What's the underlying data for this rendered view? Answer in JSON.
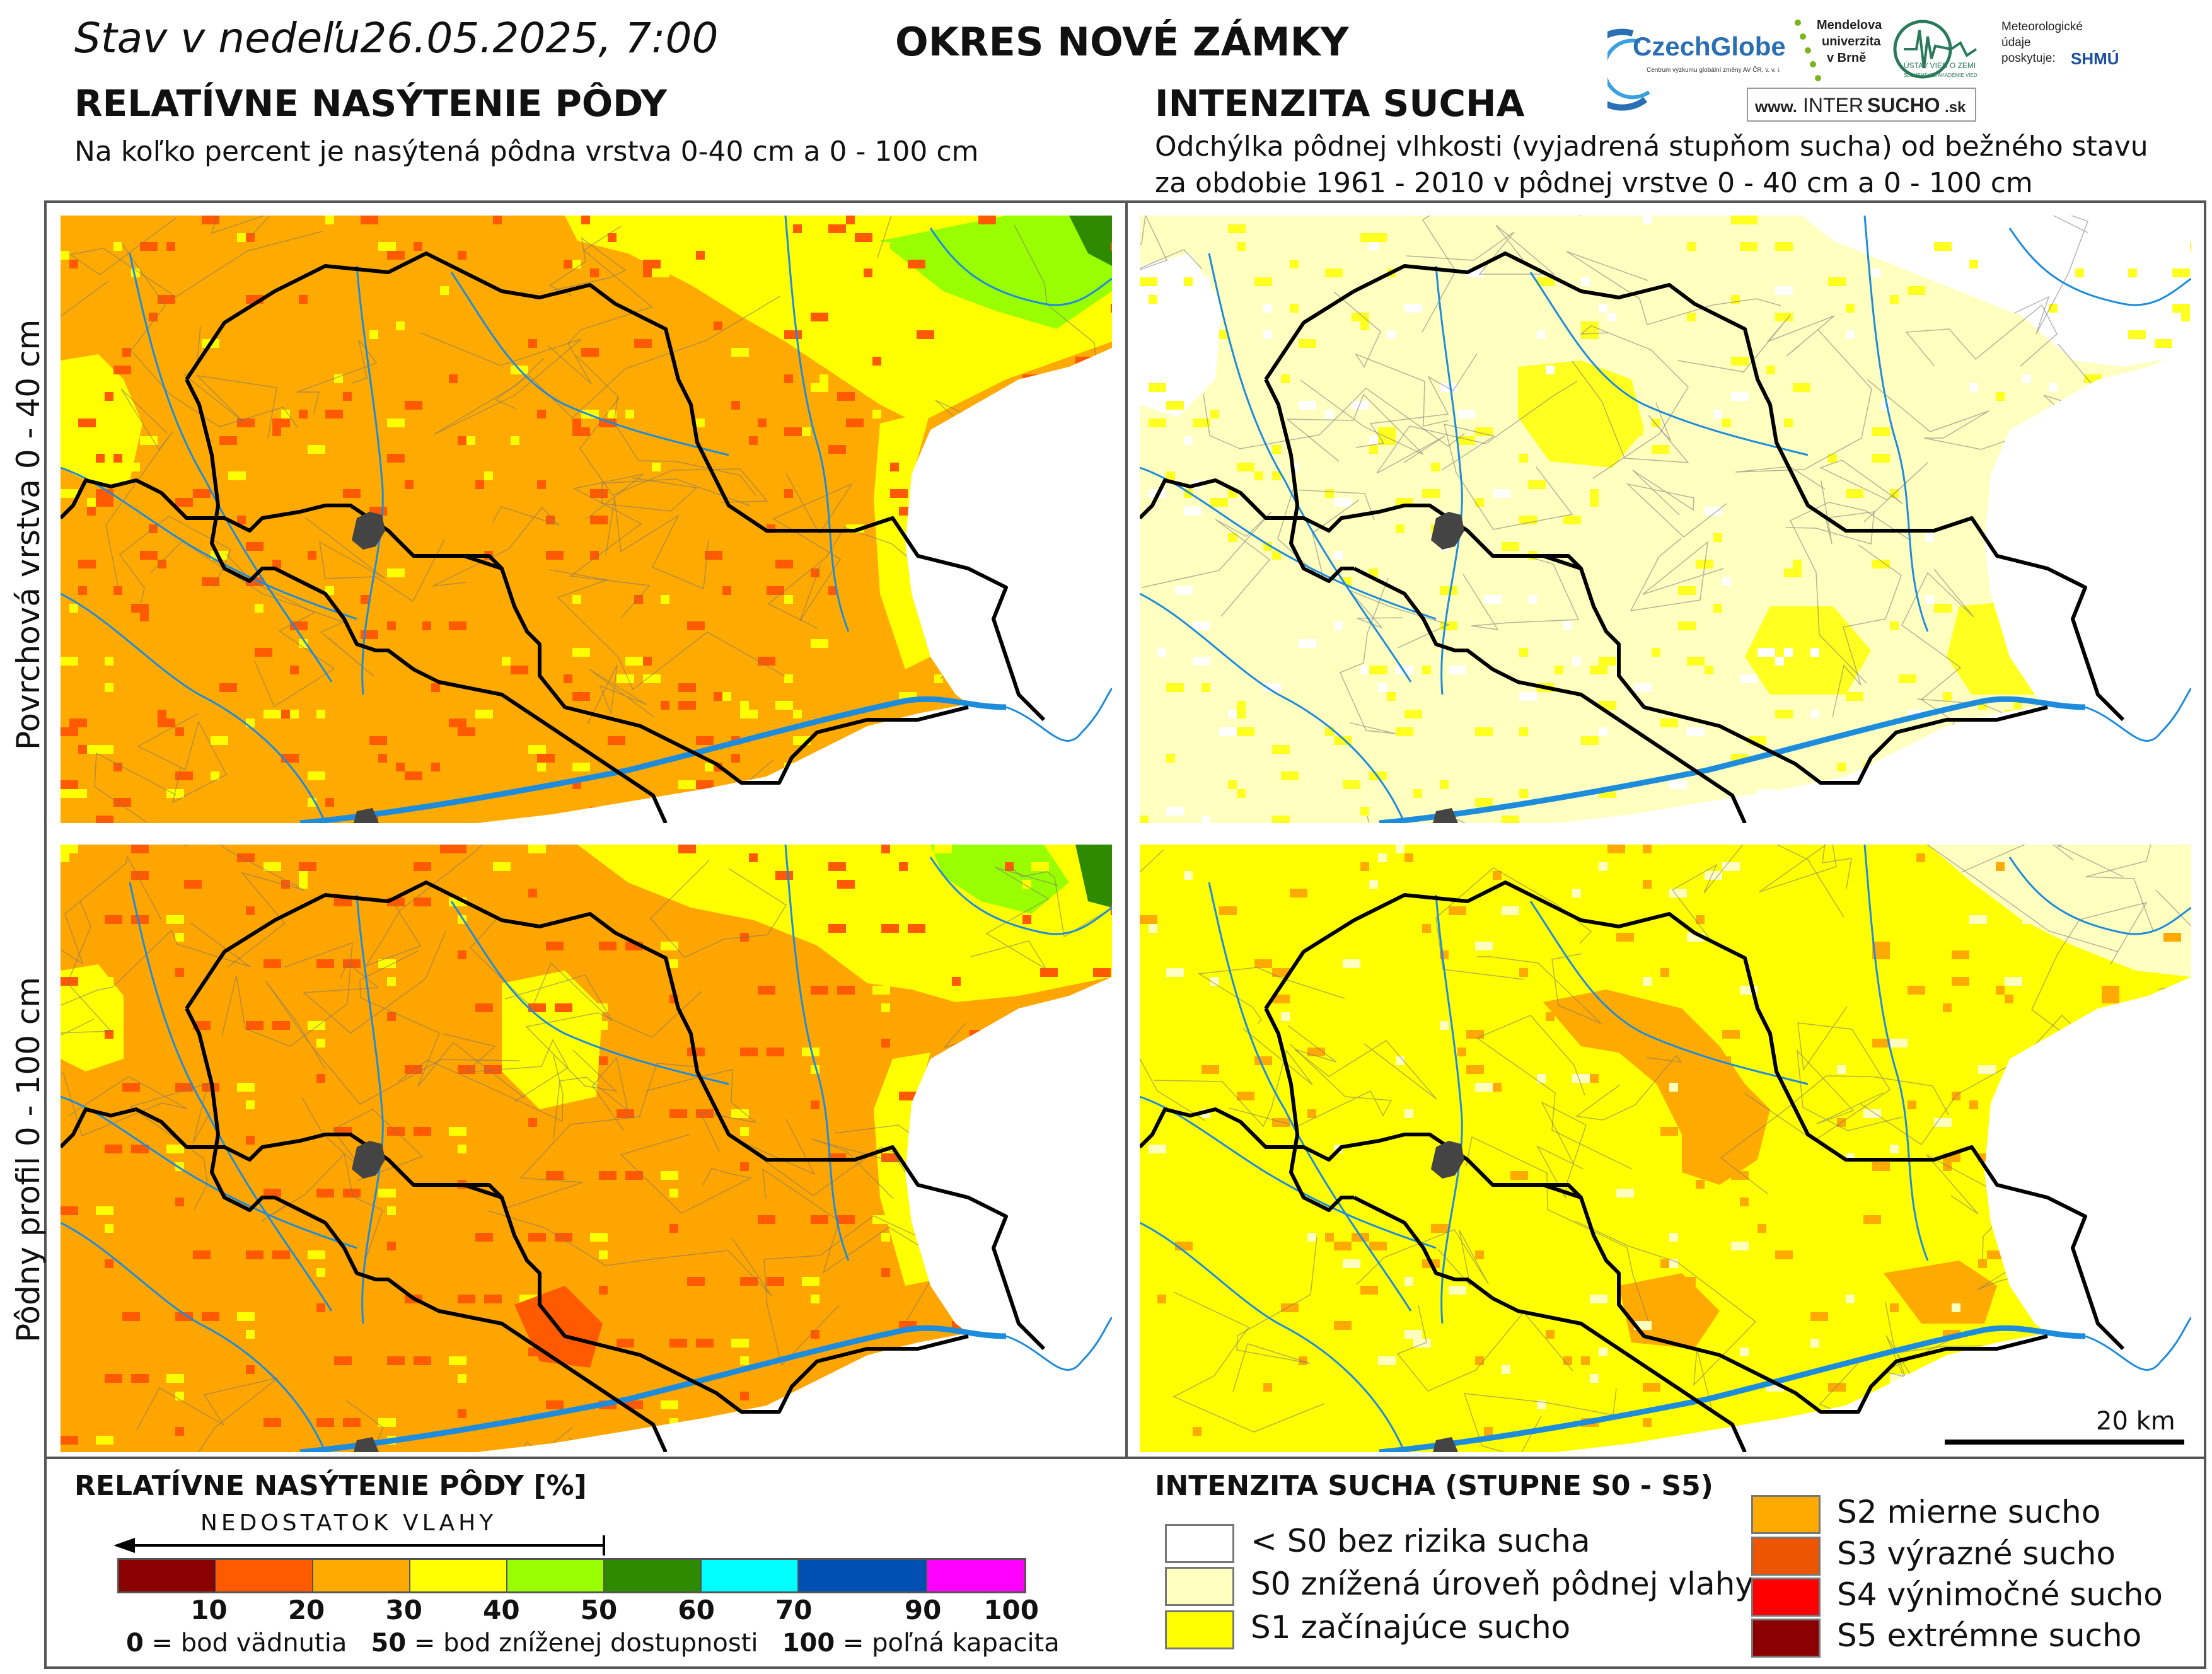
{
  "header": {
    "date_line": "Stav v nedeľu26.05.2025, 7:00",
    "district": "OKRES  NOVÉ ZÁMKY",
    "left_title": "RELATÍVNE NASÝTENIE PÔDY",
    "left_subtitle": "Na koľko percent je nasýtená pôdna vrstva 0-40 cm a 0 - 100 cm",
    "right_title": "INTENZITA SUCHA",
    "right_subtitle_1": "Odchýlka pôdnej vlhkosti (vyjadrená stupňom sucha) od bežného stavu",
    "right_subtitle_2": "za obdobie 1961 - 2010 v pôdnej vrstve 0 - 40 cm a 0 - 100 cm"
  },
  "logos": {
    "czechglobe": "CzechGlobe",
    "czechglobe_sub": "Centrum výzkumu globální změny AV ČR, v. v. i.",
    "mendelu_1": "Mendelova",
    "mendelu_2": "univerzita",
    "mendelu_3": "v Brně",
    "ustav": "ÚSTAV VIED O ZEMI",
    "ustav_sub": "SLOVENSKEJ AKADÉMIE VIED",
    "meteo_1": "Meteorologické",
    "meteo_2": "údaje",
    "meteo_3": "poskytuje:",
    "shmu": "SHMÚ",
    "intersucho_www": "www.",
    "intersucho_a": "INTER",
    "intersucho_b": "SUCHO",
    "intersucho_c": ".sk"
  },
  "row_labels": {
    "top": "Povrchová vrstva 0 - 40 cm",
    "bottom": "Pôdny profil 0 - 100 cm"
  },
  "scale_bar": "20 km",
  "saturation_legend": {
    "title": "RELATÍVNE NASÝTENIE PÔDY [%]",
    "arrow_label": "NEDOSTATOK VLAHY",
    "bins": [
      {
        "upper": "10",
        "color": "#8b0000"
      },
      {
        "upper": "20",
        "color": "#ff5a00"
      },
      {
        "upper": "30",
        "color": "#ffaa00"
      },
      {
        "upper": "40",
        "color": "#ffff00"
      },
      {
        "upper": "50",
        "color": "#99ff00"
      },
      {
        "upper": "60",
        "color": "#2e8b00"
      },
      {
        "upper": "70",
        "color": "#00ffff"
      },
      {
        "upper": "90",
        "color": "#0050b4"
      },
      {
        "upper": "100",
        "color": "#ff00ff"
      }
    ],
    "note_0_num": "0",
    "note_0_text": " = bod vädnutia",
    "note_50_num": "50",
    "note_50_text": " = bod zníženej dostupnosti",
    "note_100_num": "100",
    "note_100_text": " = poľná kapacita"
  },
  "drought_legend": {
    "title": "INTENZITA SUCHA (STUPNE S0 - S5)",
    "classes": [
      {
        "label": "< S0 bez rizika sucha",
        "color": "#ffffff"
      },
      {
        "label": "S0 znížená úroveň pôdnej vlahy",
        "color": "#ffffc0"
      },
      {
        "label": "S1 začínajúce sucho",
        "color": "#ffff00"
      },
      {
        "label": "S2 mierne sucho",
        "color": "#ffaa00"
      },
      {
        "label": "S3 výrazné sucho",
        "color": "#ee5500"
      },
      {
        "label": "S4 výnimočné sucho",
        "color": "#ff0000"
      },
      {
        "label": "S5 extrémne sucho",
        "color": "#8b0000"
      }
    ]
  },
  "map_colors": {
    "sat_top_base": "#ffaa00",
    "sat_bottom_base": "#ffa500",
    "sat_yellow": "#ffff00",
    "sat_green": "#99ff00",
    "sat_dark": "#ff5a00",
    "sat_forest": "#2e8b00",
    "drought_top_base": "#ffffc0",
    "drought_top_s1": "#ffff20",
    "drought_bottom_base": "#ffff00",
    "drought_bottom_s2": "#ffaa00",
    "river": "#1e8cdc",
    "border": "#000000",
    "town": "#444444"
  }
}
